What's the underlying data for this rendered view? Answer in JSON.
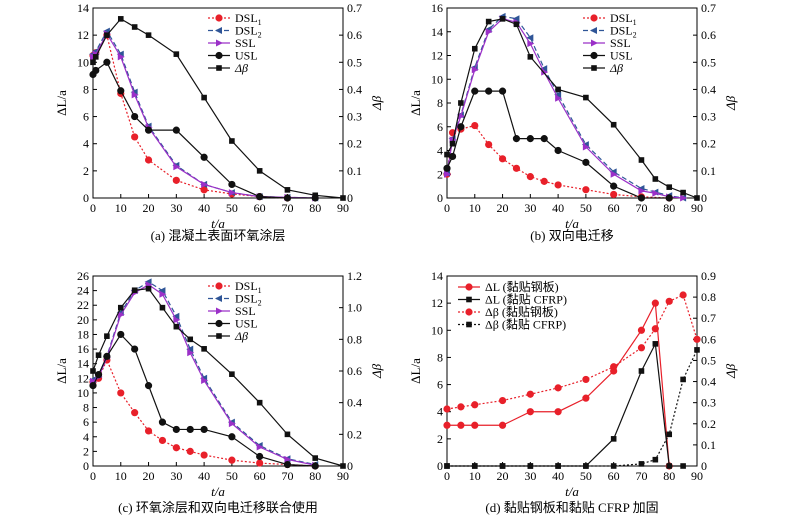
{
  "chart_data": [
    {
      "type": "line",
      "caption": "(a) 混凝土表面环氧涂层",
      "xlabel": "t/a",
      "ylabel": "ΔL/a",
      "y2label": "Δβ",
      "xlim": [
        0,
        90
      ],
      "ylim": [
        0,
        14
      ],
      "y2lim": [
        0,
        0.7
      ],
      "xticks": [
        "0",
        "10",
        "20",
        "30",
        "40",
        "50",
        "60",
        "70",
        "80",
        "90"
      ],
      "yticks": [
        "0",
        "2",
        "4",
        "6",
        "8",
        "10",
        "12",
        "14"
      ],
      "y2ticks": [
        "0",
        "0.1",
        "0.2",
        "0.3",
        "0.4",
        "0.5",
        "0.6",
        "0.7"
      ],
      "legend_position": "top-right",
      "series": [
        {
          "name": "DSL",
          "sub": "1",
          "axis": "left",
          "color": "#e8202a",
          "marker": "circle",
          "dash": "2,2",
          "x": [
            0,
            1,
            5,
            10,
            15,
            20,
            30,
            40,
            50,
            60,
            70
          ],
          "y": [
            10.5,
            10.7,
            12,
            7.7,
            4.5,
            2.8,
            1.3,
            0.6,
            0.3,
            0.1,
            0
          ]
        },
        {
          "name": "DSL",
          "sub": "2",
          "axis": "left",
          "color": "#2f5597",
          "marker": "triangle-left",
          "dash": "5,3",
          "x": [
            0,
            1,
            5,
            10,
            15,
            20,
            30,
            40,
            50,
            60,
            70,
            80
          ],
          "y": [
            10.6,
            10.8,
            12.3,
            10.6,
            7.8,
            5.3,
            2.4,
            1.0,
            0.4,
            0.1,
            0.05,
            0
          ]
        },
        {
          "name": "SSL",
          "sub": "",
          "axis": "left",
          "color": "#9b30c8",
          "marker": "triangle-right",
          "dash": "",
          "x": [
            0,
            1,
            5,
            10,
            15,
            20,
            30,
            40,
            50,
            60,
            70,
            80
          ],
          "y": [
            10.4,
            10.6,
            12.1,
            10.4,
            7.6,
            5.2,
            2.3,
            1.0,
            0.4,
            0.1,
            0.05,
            0
          ]
        },
        {
          "name": "USL",
          "sub": "",
          "axis": "left",
          "color": "#111111",
          "marker": "circle",
          "dash": "",
          "x": [
            0,
            1,
            5,
            10,
            15,
            20,
            30,
            40,
            50,
            60,
            70,
            80
          ],
          "y": [
            9.1,
            9.4,
            10,
            7.9,
            6,
            5,
            5,
            3,
            1,
            0.1,
            0,
            0
          ]
        },
        {
          "name": "Δβ",
          "sub": "",
          "axis": "right",
          "color": "#111111",
          "marker": "square",
          "dash": "",
          "x": [
            0,
            1,
            5,
            10,
            15,
            20,
            30,
            40,
            50,
            60,
            70,
            80,
            90
          ],
          "y": [
            0.5,
            0.52,
            0.6,
            0.66,
            0.63,
            0.6,
            0.53,
            0.37,
            0.21,
            0.1,
            0.03,
            0.01,
            0
          ]
        }
      ]
    },
    {
      "type": "line",
      "caption": "(b) 双向电迁移",
      "xlabel": "t/a",
      "ylabel": "ΔL/a",
      "y2label": "Δβ",
      "xlim": [
        0,
        90
      ],
      "ylim": [
        0,
        16
      ],
      "y2lim": [
        0,
        0.7
      ],
      "xticks": [
        "0",
        "10",
        "20",
        "30",
        "40",
        "50",
        "60",
        "70",
        "80",
        "90"
      ],
      "yticks": [
        "0",
        "2",
        "4",
        "6",
        "8",
        "10",
        "12",
        "14",
        "16"
      ],
      "y2ticks": [
        "0",
        "0.1",
        "0.2",
        "0.3",
        "0.4",
        "0.5",
        "0.6",
        "0.7"
      ],
      "legend_position": "top-right",
      "series": [
        {
          "name": "DSL",
          "sub": "1",
          "axis": "left",
          "color": "#e8202a",
          "marker": "circle",
          "dash": "2,2",
          "x": [
            0,
            2,
            5,
            10,
            15,
            20,
            25,
            30,
            35,
            40,
            50,
            60,
            70,
            80
          ],
          "y": [
            2,
            5.5,
            5.8,
            6.1,
            4.5,
            3.3,
            2.5,
            1.8,
            1.4,
            1.1,
            0.7,
            0.3,
            0.1,
            0
          ]
        },
        {
          "name": "DSL",
          "sub": "2",
          "axis": "left",
          "color": "#2f5597",
          "marker": "triangle-left",
          "dash": "5,3",
          "x": [
            0,
            2,
            5,
            10,
            15,
            20,
            25,
            30,
            35,
            40,
            50,
            60,
            70,
            75,
            80,
            85
          ],
          "y": [
            2.1,
            5,
            7,
            11,
            14.2,
            15.3,
            15.1,
            13.5,
            10.9,
            8.7,
            4.5,
            2.2,
            0.8,
            0.5,
            0.2,
            0
          ]
        },
        {
          "name": "SSL",
          "sub": "",
          "axis": "left",
          "color": "#9b30c8",
          "marker": "triangle-right",
          "dash": "",
          "x": [
            0,
            2,
            5,
            10,
            15,
            20,
            25,
            30,
            35,
            40,
            50,
            60,
            70,
            75,
            80,
            85
          ],
          "y": [
            2,
            4.9,
            6.9,
            10.8,
            14,
            15.1,
            14.8,
            13,
            10.6,
            8.4,
            4.3,
            2,
            0.6,
            0.4,
            0.1,
            0
          ]
        },
        {
          "name": "USL",
          "sub": "",
          "axis": "left",
          "color": "#111111",
          "marker": "circle",
          "dash": "",
          "x": [
            0,
            2,
            5,
            10,
            15,
            20,
            25,
            30,
            35,
            40,
            50,
            60,
            70,
            80
          ],
          "y": [
            2.5,
            3.5,
            6,
            9,
            9,
            9,
            5,
            5,
            5,
            4,
            3,
            1,
            0,
            0
          ]
        },
        {
          "name": "Δβ",
          "sub": "",
          "axis": "right",
          "color": "#111111",
          "marker": "square",
          "dash": "",
          "x": [
            0,
            2,
            5,
            10,
            15,
            20,
            25,
            30,
            40,
            50,
            60,
            70,
            75,
            80,
            85,
            90
          ],
          "y": [
            0.16,
            0.2,
            0.35,
            0.55,
            0.65,
            0.66,
            0.64,
            0.52,
            0.4,
            0.37,
            0.27,
            0.14,
            0.07,
            0.04,
            0.02,
            0
          ]
        }
      ]
    },
    {
      "type": "line",
      "caption": "(c) 环氧涂层和双向电迁移联合使用",
      "xlabel": "t/a",
      "ylabel": "ΔL/a",
      "y2label": "Δβ",
      "xlim": [
        0,
        90
      ],
      "ylim": [
        0,
        26
      ],
      "y2lim": [
        0,
        1.2
      ],
      "xticks": [
        "0",
        "10",
        "20",
        "30",
        "40",
        "50",
        "60",
        "70",
        "80",
        "90"
      ],
      "yticks": [
        "0",
        "2",
        "4",
        "6",
        "8",
        "10",
        "12",
        "14",
        "16",
        "18",
        "20",
        "22",
        "24",
        "26"
      ],
      "y2ticks": [
        "0",
        "0.2",
        "0.4",
        "0.6",
        "0.8",
        "1.0",
        "1.2"
      ],
      "legend_position": "top-right",
      "series": [
        {
          "name": "DSL",
          "sub": "1",
          "axis": "left",
          "color": "#e8202a",
          "marker": "circle",
          "dash": "2,2",
          "x": [
            0,
            2,
            5,
            10,
            15,
            20,
            25,
            30,
            35,
            40,
            50,
            60,
            70,
            80
          ],
          "y": [
            11.5,
            12,
            14.5,
            10,
            7.3,
            4.8,
            3.5,
            2.5,
            2,
            1.5,
            0.8,
            0.4,
            0.2,
            0
          ]
        },
        {
          "name": "DSL",
          "sub": "2",
          "axis": "left",
          "color": "#2f5597",
          "marker": "triangle-left",
          "dash": "5,3",
          "x": [
            0,
            2,
            5,
            10,
            15,
            20,
            25,
            30,
            35,
            40,
            50,
            60,
            70,
            80
          ],
          "y": [
            11.8,
            12.5,
            15,
            21,
            24,
            25.2,
            24,
            20.5,
            16,
            12,
            6,
            2.8,
            1,
            0.2
          ]
        },
        {
          "name": "SSL",
          "sub": "",
          "axis": "left",
          "color": "#9b30c8",
          "marker": "triangle-right",
          "dash": "",
          "x": [
            0,
            2,
            5,
            10,
            15,
            20,
            25,
            30,
            35,
            40,
            50,
            60,
            70,
            80
          ],
          "y": [
            11.6,
            12.2,
            14.8,
            20.7,
            23.7,
            24.8,
            23.5,
            20,
            15.5,
            11.7,
            5.8,
            2.6,
            0.9,
            0.1
          ]
        },
        {
          "name": "USL",
          "sub": "",
          "axis": "left",
          "color": "#111111",
          "marker": "circle",
          "dash": "",
          "x": [
            0,
            2,
            5,
            10,
            15,
            20,
            25,
            30,
            35,
            40,
            50,
            60,
            70,
            80
          ],
          "y": [
            11,
            12.5,
            15,
            18,
            16,
            11,
            6,
            5,
            5,
            5,
            4,
            1.3,
            0.2,
            0
          ]
        },
        {
          "name": "Δβ",
          "sub": "",
          "axis": "right",
          "color": "#111111",
          "marker": "square",
          "dash": "",
          "x": [
            0,
            2,
            5,
            10,
            15,
            20,
            25,
            30,
            35,
            40,
            50,
            60,
            70,
            80,
            90
          ],
          "y": [
            0.6,
            0.7,
            0.82,
            1.0,
            1.11,
            1.12,
            1.0,
            0.88,
            0.8,
            0.74,
            0.58,
            0.4,
            0.2,
            0.05,
            0
          ]
        }
      ]
    },
    {
      "type": "line",
      "caption": "(d) 黏贴钢板和黏贴 CFRP 加固",
      "xlabel": "t/a",
      "ylabel": "ΔL/a",
      "y2label": "Δβ",
      "xlim": [
        0,
        90
      ],
      "ylim": [
        0,
        14
      ],
      "y2lim": [
        0,
        0.9
      ],
      "xticks": [
        "0",
        "10",
        "20",
        "30",
        "40",
        "50",
        "60",
        "70",
        "80",
        "90"
      ],
      "yticks": [
        "0",
        "2",
        "4",
        "6",
        "8",
        "10",
        "12",
        "14"
      ],
      "y2ticks": [
        "0",
        "0.1",
        "0.2",
        "0.3",
        "0.4",
        "0.5",
        "0.6",
        "0.7",
        "0.8",
        "0.9"
      ],
      "legend_position": "top-left",
      "series": [
        {
          "name": "ΔL (黏贴钢板)",
          "sub": "",
          "axis": "left",
          "color": "#e8202a",
          "marker": "circle",
          "dash": "",
          "x": [
            0,
            5,
            10,
            20,
            30,
            40,
            50,
            60,
            70,
            75,
            80
          ],
          "y": [
            3,
            3,
            3,
            3,
            4,
            4,
            5,
            7,
            10,
            12,
            0
          ]
        },
        {
          "name": "ΔL (黏贴 CFRP)",
          "sub": "",
          "axis": "left",
          "color": "#111111",
          "marker": "square",
          "dash": "",
          "x": [
            0,
            10,
            20,
            30,
            40,
            50,
            60,
            70,
            75,
            80,
            85
          ],
          "y": [
            0,
            0,
            0,
            0,
            0,
            0,
            2,
            7,
            9,
            0,
            0
          ]
        },
        {
          "name": "Δβ (黏贴钢板)",
          "sub": "",
          "axis": "right",
          "color": "#e8202a",
          "marker": "circle",
          "dash": "2,2",
          "x": [
            0,
            5,
            10,
            20,
            30,
            40,
            50,
            60,
            70,
            75,
            80,
            85,
            90
          ],
          "y": [
            0.27,
            0.28,
            0.29,
            0.31,
            0.34,
            0.37,
            0.41,
            0.47,
            0.56,
            0.65,
            0.78,
            0.81,
            0.6
          ]
        },
        {
          "name": "Δβ (黏贴 CFRP)",
          "sub": "",
          "axis": "right",
          "color": "#111111",
          "marker": "square",
          "dash": "2,2",
          "x": [
            0,
            10,
            20,
            30,
            40,
            50,
            60,
            70,
            75,
            80,
            85,
            90
          ],
          "y": [
            0,
            0,
            0,
            0,
            0,
            0,
            0,
            0.01,
            0.03,
            0.15,
            0.41,
            0.55
          ]
        }
      ]
    }
  ]
}
